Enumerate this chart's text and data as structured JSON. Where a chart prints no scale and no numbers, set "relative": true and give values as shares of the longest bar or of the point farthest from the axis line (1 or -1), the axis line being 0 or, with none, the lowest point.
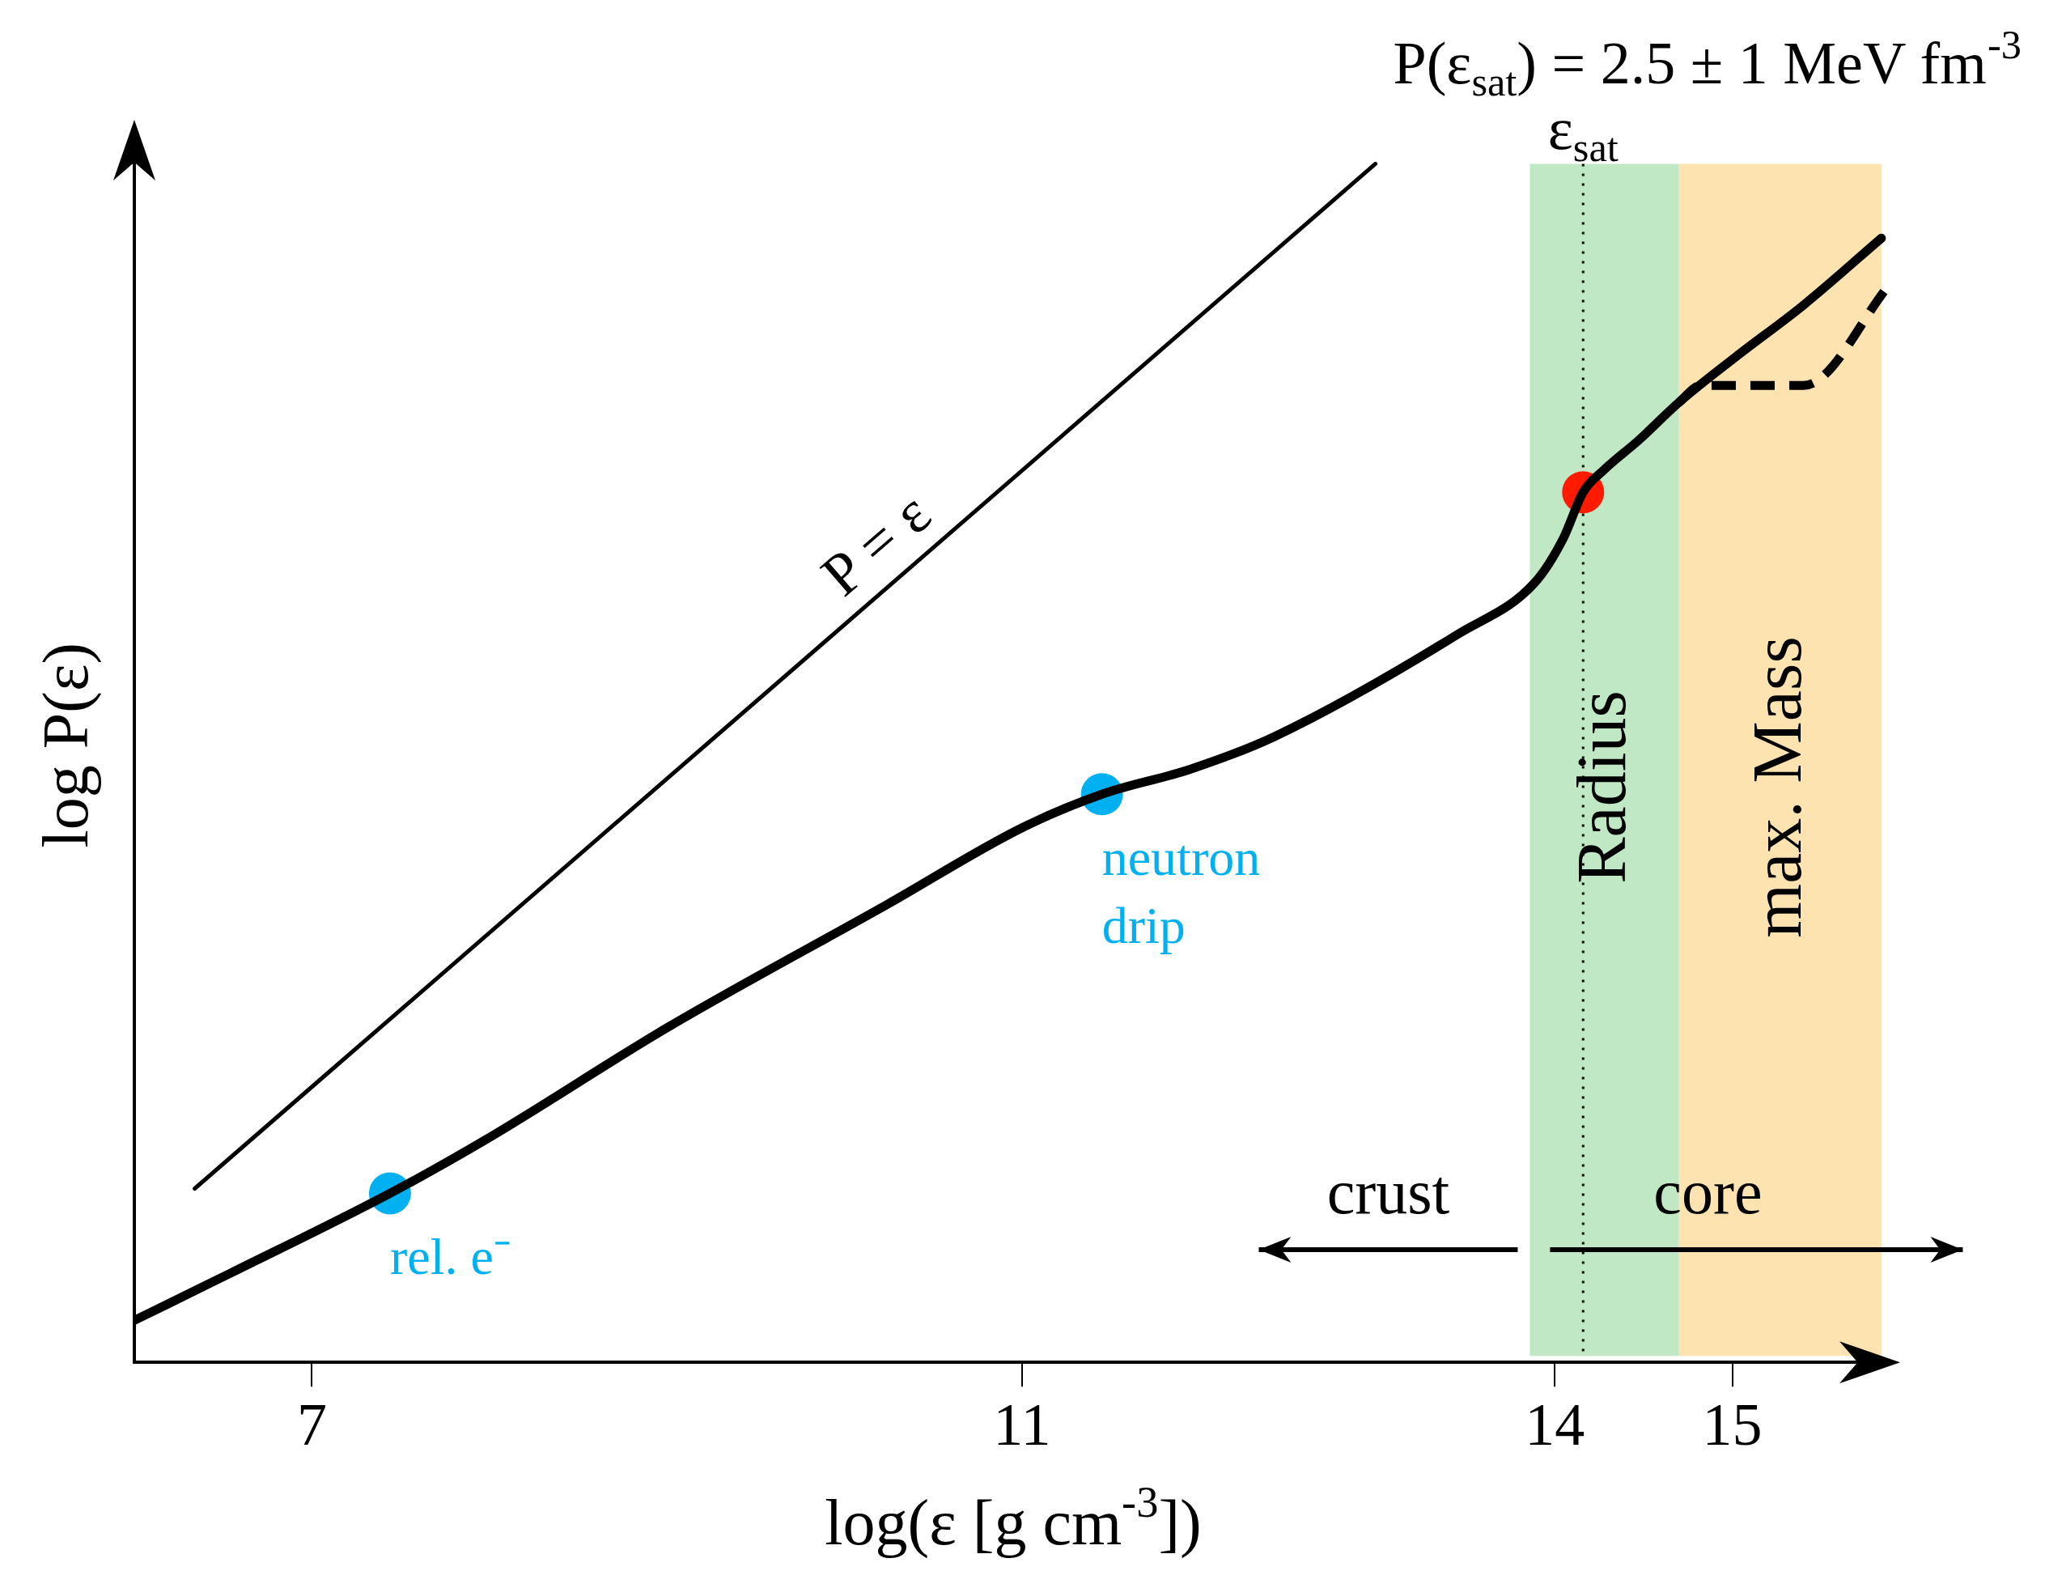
{
  "chart_data": {
    "type": "line",
    "title": "P(ε$_{sat}$) = 2.5 ± 1 MeV fm$^{-3}$",
    "xlabel": "log(ε [g cm$^{-3}$])",
    "ylabel": "log P(ε)",
    "relative": true,
    "xlim": [
      6,
      15.9
    ],
    "xticks": [
      7,
      11,
      14,
      15
    ],
    "grid": false,
    "legend": false,
    "series": [
      {
        "name": "P = ε",
        "color": "#000000",
        "marker": "none",
        "x": [
          6.34,
          12.99
        ],
        "values": [
          0.145,
          1.0
        ]
      },
      {
        "color": "#000000",
        "marker": "none",
        "x": [
          6.0,
          6.55,
          7.44,
          7.97,
          9.01,
          10.24,
          11.0,
          11.45,
          11.95,
          12.42,
          13.46,
          13.89,
          14.05,
          14.16,
          14.28,
          14.47,
          14.7,
          15.02,
          15.4,
          15.84
        ],
        "values": [
          0.035,
          0.075,
          0.141,
          0.185,
          0.28,
          0.382,
          0.446,
          0.474,
          0.495,
          0.522,
          0.608,
          0.651,
          0.688,
          0.726,
          0.745,
          0.769,
          0.801,
          0.839,
          0.882,
          0.938
        ]
      },
      {
        "color": "#000000",
        "marker": "none",
        "line_style": "dashed",
        "x": [
          14.7,
          14.82,
          15.4,
          15.89
        ],
        "values": [
          0.801,
          0.815,
          0.815,
          0.9
        ]
      },
      {
        "type": "scatter",
        "color": "#00b0f0",
        "marker": "circle",
        "x": [
          7.44,
          11.45
        ],
        "values": [
          0.141,
          0.474
        ]
      },
      {
        "type": "scatter",
        "color": "#ff1a00",
        "marker": "circle",
        "x": [
          14.16
        ],
        "values": [
          0.726
        ]
      }
    ],
    "bands": [
      {
        "axis": "x",
        "from": 13.86,
        "to": 14.7,
        "label": "Radius",
        "color": "#c0e8c4"
      },
      {
        "axis": "x",
        "from": 14.7,
        "to": 15.84,
        "label": "max. Mass",
        "color": "#fde3b0"
      }
    ],
    "ref_lines": [
      {
        "axis": "x",
        "value": 14.16,
        "label": "ε$_{sat}$",
        "line_style": "dotted",
        "color": "#000000"
      }
    ],
    "annotations": [
      {
        "text": "rel. e⁻",
        "x": 7.44,
        "y": 0.141
      },
      {
        "text": "neutron\ndrip",
        "x": 11.45,
        "y": 0.474
      },
      "crust",
      "core"
    ]
  }
}
